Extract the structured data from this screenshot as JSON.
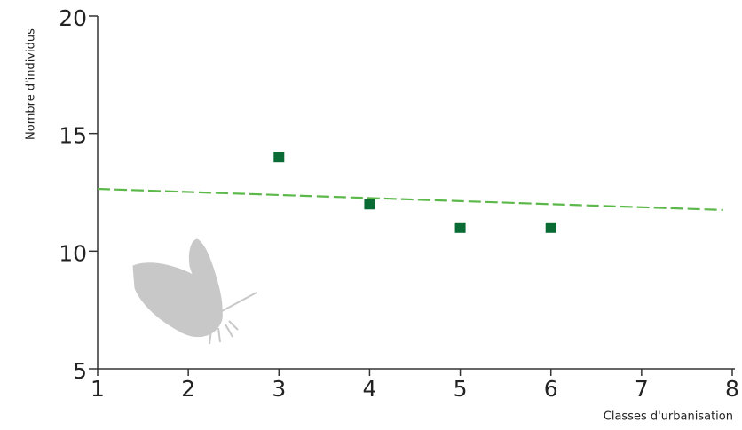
{
  "chart_data": {
    "type": "scatter",
    "x_label": "Classes d'urbanisation",
    "y_label": "Nombre d'individus",
    "x": [
      3,
      4,
      5,
      6
    ],
    "values": [
      14,
      12,
      11,
      11
    ],
    "color": "#0b6b35",
    "trend": {
      "x": [
        1,
        7.9
      ],
      "values": [
        12.65,
        11.75
      ],
      "color": "#5cb84a",
      "dashed": true
    },
    "xlim": [
      1,
      8
    ],
    "xticks": [
      1,
      2,
      3,
      4,
      5,
      6,
      7,
      8
    ],
    "ylim": [
      5,
      20
    ],
    "yticks": [
      5,
      10,
      15,
      20
    ],
    "grid": false
  }
}
